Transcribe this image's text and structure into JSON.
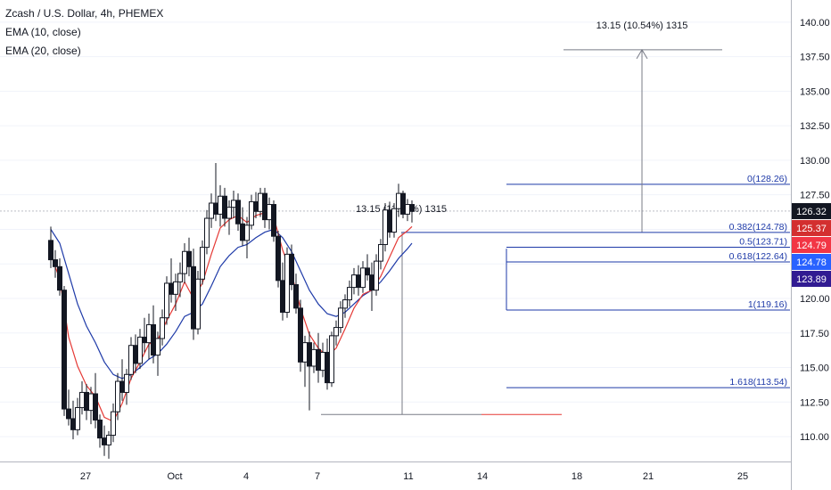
{
  "chart_data": {
    "type": "candlestick",
    "title": "Zcash / U.S. Dollar, 4h, PHEMEX",
    "indicators": [
      "EMA (10, close)",
      "EMA (20, close)"
    ],
    "ylim": [
      108.2,
      141.6
    ],
    "y_ticks": [
      "110.00",
      "112.50",
      "115.00",
      "117.50",
      "120.00",
      "122.50",
      "125.00",
      "127.50",
      "130.00",
      "132.50",
      "135.00",
      "137.50",
      "140.00"
    ],
    "x_ticks": [
      "27",
      "Oct",
      "4",
      "7",
      "11",
      "14",
      "18",
      "21",
      "25"
    ],
    "candles": [
      [
        24,
        124.2,
        125.2,
        122.2,
        122.8
      ],
      [
        24.5,
        122.8,
        123.5,
        121.5,
        122.3
      ],
      [
        25,
        122.3,
        122.9,
        120.2,
        120.6
      ],
      [
        25.5,
        120.6,
        120.9,
        111.5,
        112.0
      ],
      [
        26,
        112.0,
        113.4,
        110.8,
        111.3
      ],
      [
        26.5,
        111.3,
        112.6,
        109.8,
        110.5
      ],
      [
        27,
        110.5,
        112.8,
        110.1,
        112.1
      ],
      [
        27.5,
        112.1,
        114.0,
        111.6,
        113.2
      ],
      [
        28,
        113.2,
        113.8,
        111.2,
        111.9
      ],
      [
        28.5,
        111.9,
        113.6,
        110.9,
        113.1
      ],
      [
        29,
        113.1,
        114.6,
        110.6,
        111.2
      ],
      [
        29.5,
        111.2,
        111.6,
        109.2,
        109.9
      ],
      [
        30,
        109.9,
        110.8,
        108.6,
        109.4
      ],
      [
        30.5,
        109.4,
        110.4,
        108.4,
        110.1
      ],
      [
        31,
        110.1,
        112.4,
        109.6,
        111.8
      ],
      [
        31.5,
        111.8,
        114.6,
        111.2,
        114.0
      ],
      [
        32,
        114.0,
        115.6,
        112.6,
        113.2
      ],
      [
        32.5,
        113.2,
        114.9,
        112.3,
        114.5
      ],
      [
        33,
        114.5,
        117.2,
        114.1,
        116.6
      ],
      [
        33.5,
        116.6,
        117.4,
        114.6,
        115.3
      ],
      [
        34,
        115.3,
        117.8,
        114.9,
        117.2
      ],
      [
        34.5,
        117.2,
        118.6,
        116.1,
        116.8
      ],
      [
        35,
        116.8,
        118.9,
        115.6,
        118.1
      ],
      [
        35.5,
        118.1,
        119.5,
        115.3,
        115.9
      ],
      [
        36,
        115.9,
        117.6,
        114.4,
        117.1
      ],
      [
        36.5,
        117.1,
        119.2,
        116.6,
        118.6
      ],
      [
        37,
        118.6,
        121.6,
        118.1,
        121.1
      ],
      [
        37.5,
        121.1,
        122.9,
        119.7,
        120.3
      ],
      [
        38,
        120.3,
        121.8,
        119.1,
        121.2
      ],
      [
        38.5,
        121.2,
        122.6,
        120.1,
        121.8
      ],
      [
        39,
        121.8,
        124.0,
        121.1,
        123.4
      ],
      [
        39.5,
        123.4,
        124.4,
        121.6,
        122.3
      ],
      [
        40,
        122.3,
        123.6,
        117.0,
        117.8
      ],
      [
        40.5,
        117.8,
        122.0,
        117.4,
        121.4
      ],
      [
        41,
        121.4,
        124.2,
        121.0,
        123.7
      ],
      [
        41.5,
        123.7,
        126.4,
        123.2,
        125.8
      ],
      [
        42,
        125.8,
        127.6,
        125.1,
        126.9
      ],
      [
        42.5,
        126.9,
        129.8,
        125.6,
        126.1
      ],
      [
        43,
        126.1,
        128.2,
        125.2,
        127.4
      ],
      [
        43.5,
        127.4,
        128.0,
        125.2,
        125.8
      ],
      [
        44,
        125.8,
        127.1,
        124.6,
        126.6
      ],
      [
        44.5,
        126.6,
        127.8,
        125.8,
        127.1
      ],
      [
        45,
        127.1,
        127.6,
        124.9,
        125.4
      ],
      [
        45.5,
        125.4,
        126.6,
        123.8,
        124.2
      ],
      [
        46,
        124.2,
        125.9,
        122.9,
        125.3
      ],
      [
        46.5,
        125.3,
        127.5,
        125.0,
        127.0
      ],
      [
        47,
        127.0,
        127.7,
        125.8,
        126.3
      ],
      [
        47.5,
        126.3,
        128.0,
        125.9,
        127.6
      ],
      [
        48,
        127.6,
        128.0,
        125.1,
        125.7
      ],
      [
        48.5,
        125.7,
        127.3,
        125.0,
        126.8
      ],
      [
        49,
        126.8,
        127.1,
        124.1,
        124.5
      ],
      [
        49.5,
        124.5,
        124.9,
        120.8,
        121.3
      ],
      [
        50,
        121.3,
        122.6,
        118.4,
        119.0
      ],
      [
        50.5,
        119.0,
        123.7,
        118.6,
        123.2
      ],
      [
        51,
        123.2,
        123.9,
        120.6,
        121.0
      ],
      [
        51.5,
        121.0,
        121.8,
        118.9,
        119.3
      ],
      [
        52,
        119.3,
        119.9,
        114.7,
        115.4
      ],
      [
        52.5,
        115.4,
        117.3,
        113.6,
        116.8
      ],
      [
        53,
        116.8,
        117.6,
        111.9,
        115.1
      ],
      [
        53.5,
        115.1,
        116.8,
        114.6,
        116.3
      ],
      [
        54,
        116.3,
        117.5,
        113.9,
        114.8
      ],
      [
        54.5,
        114.8,
        116.8,
        114.3,
        116.1
      ],
      [
        55,
        116.1,
        117.1,
        113.4,
        113.9
      ],
      [
        55.5,
        113.9,
        117.6,
        113.6,
        117.3
      ],
      [
        56,
        117.3,
        118.4,
        116.6,
        117.9
      ],
      [
        56.5,
        117.9,
        119.8,
        117.5,
        119.3
      ],
      [
        57,
        119.3,
        120.3,
        118.6,
        119.9
      ],
      [
        57.5,
        119.9,
        121.3,
        119.4,
        120.8
      ],
      [
        58,
        120.8,
        122.2,
        120.3,
        121.7
      ],
      [
        58.5,
        121.7,
        122.4,
        120.2,
        120.8
      ],
      [
        59,
        120.8,
        122.7,
        120.4,
        122.2
      ],
      [
        59.5,
        122.2,
        123.2,
        121.3,
        121.7
      ],
      [
        60,
        121.7,
        122.6,
        119.1,
        120.6
      ],
      [
        60.5,
        120.6,
        123.2,
        120.2,
        122.7
      ],
      [
        61,
        122.7,
        124.3,
        122.1,
        123.9
      ],
      [
        61.5,
        123.9,
        126.9,
        123.4,
        126.4
      ],
      [
        62,
        126.4,
        127.0,
        124.4,
        124.8
      ],
      [
        62.5,
        124.8,
        126.9,
        124.4,
        126.5
      ],
      [
        63,
        126.5,
        128.3,
        125.9,
        127.6
      ],
      [
        63.5,
        127.6,
        127.8,
        125.8,
        126.1
      ],
      [
        64,
        126.1,
        127.2,
        125.6,
        126.8
      ],
      [
        64.5,
        126.8,
        127.1,
        125.5,
        126.3
      ]
    ],
    "ema10": [
      [
        24,
        123.2
      ],
      [
        25,
        121.4
      ],
      [
        26,
        117.2
      ],
      [
        27,
        115.1
      ],
      [
        28,
        113.7
      ],
      [
        29,
        112.9
      ],
      [
        30,
        111.4
      ],
      [
        31,
        111.1
      ],
      [
        32,
        112.4
      ],
      [
        33,
        114.2
      ],
      [
        34,
        115.4
      ],
      [
        35,
        116.7
      ],
      [
        36,
        117.0
      ],
      [
        37,
        118.4
      ],
      [
        38,
        119.6
      ],
      [
        39,
        121.2
      ],
      [
        40,
        120.0
      ],
      [
        41,
        121.1
      ],
      [
        42,
        123.2
      ],
      [
        43,
        125.1
      ],
      [
        44,
        125.7
      ],
      [
        45,
        126.0
      ],
      [
        46,
        125.5
      ],
      [
        47,
        126.0
      ],
      [
        48,
        126.2
      ],
      [
        49,
        125.9
      ],
      [
        50,
        123.5
      ],
      [
        51,
        121.8
      ],
      [
        52,
        119.3
      ],
      [
        53,
        117.4
      ],
      [
        54,
        116.4
      ],
      [
        55,
        115.8
      ],
      [
        56,
        116.4
      ],
      [
        57,
        117.8
      ],
      [
        58,
        119.3
      ],
      [
        59,
        120.3
      ],
      [
        60,
        120.6
      ],
      [
        61,
        121.6
      ],
      [
        62,
        123.0
      ],
      [
        63,
        124.4
      ],
      [
        64,
        124.9
      ],
      [
        64.5,
        125.2
      ]
    ],
    "ema20": [
      [
        24,
        125.0
      ],
      [
        25,
        124.0
      ],
      [
        26,
        121.8
      ],
      [
        27,
        119.6
      ],
      [
        28,
        118.0
      ],
      [
        29,
        116.8
      ],
      [
        30,
        115.4
      ],
      [
        31,
        114.5
      ],
      [
        32,
        114.2
      ],
      [
        33,
        114.5
      ],
      [
        34,
        115.0
      ],
      [
        35,
        115.6
      ],
      [
        36,
        116.0
      ],
      [
        37,
        116.7
      ],
      [
        38,
        117.6
      ],
      [
        39,
        118.7
      ],
      [
        40,
        119.0
      ],
      [
        41,
        119.6
      ],
      [
        42,
        120.9
      ],
      [
        43,
        122.3
      ],
      [
        44,
        123.1
      ],
      [
        45,
        123.7
      ],
      [
        46,
        123.9
      ],
      [
        47,
        124.4
      ],
      [
        48,
        124.8
      ],
      [
        49,
        125.0
      ],
      [
        50,
        124.4
      ],
      [
        51,
        123.4
      ],
      [
        52,
        122.0
      ],
      [
        53,
        120.6
      ],
      [
        54,
        119.6
      ],
      [
        55,
        118.9
      ],
      [
        56,
        118.7
      ],
      [
        57,
        119.0
      ],
      [
        58,
        119.6
      ],
      [
        59,
        120.2
      ],
      [
        60,
        120.6
      ],
      [
        61,
        121.2
      ],
      [
        62,
        122.0
      ],
      [
        63,
        122.9
      ],
      [
        64,
        123.6
      ],
      [
        64.5,
        124.0
      ]
    ],
    "fib_levels": [
      {
        "ratio": "0",
        "value": 128.26,
        "label": "0(128.26)"
      },
      {
        "ratio": "0.382",
        "value": 124.78,
        "label": "0.382(124.78)"
      },
      {
        "ratio": "0.5",
        "value": 123.71,
        "label": "0.5(123.71)"
      },
      {
        "ratio": "0.618",
        "value": 122.64,
        "label": "0.618(122.64)"
      },
      {
        "ratio": "1",
        "value": 119.16,
        "label": "1(119.16)"
      },
      {
        "ratio": "1.618",
        "value": 113.54,
        "label": "1.618(113.54)"
      }
    ],
    "annotations": [
      {
        "text": "13.15 (10.54%) 1315",
        "x_from": 71,
        "x_to": 78,
        "y_from": 124.8,
        "y_to": 138.0
      },
      {
        "text": "13.15 (11.78%) 1315",
        "x_from": 45,
        "x_to": 55,
        "y_from": 111.6,
        "y_to": 124.8
      }
    ],
    "price_labels": [
      {
        "text": "126.32",
        "value": 126.32,
        "color": "#131722"
      },
      {
        "text": "125.37",
        "value": 125.37,
        "color": "#d32f2f"
      },
      {
        "text": "124.79",
        "value": 124.79,
        "color": "#f23645"
      },
      {
        "text": "124.78",
        "value": 124.78,
        "color": "#2962ff"
      },
      {
        "text": "123.89",
        "value": 123.89,
        "color": "#311b92"
      }
    ],
    "colors": {
      "candle": "#131722",
      "ema10": "#e53935",
      "ema20": "#1e3aa8",
      "fib": "#1e3aa8",
      "grid": "#f0f3fa",
      "axis_text": "#131722"
    }
  }
}
